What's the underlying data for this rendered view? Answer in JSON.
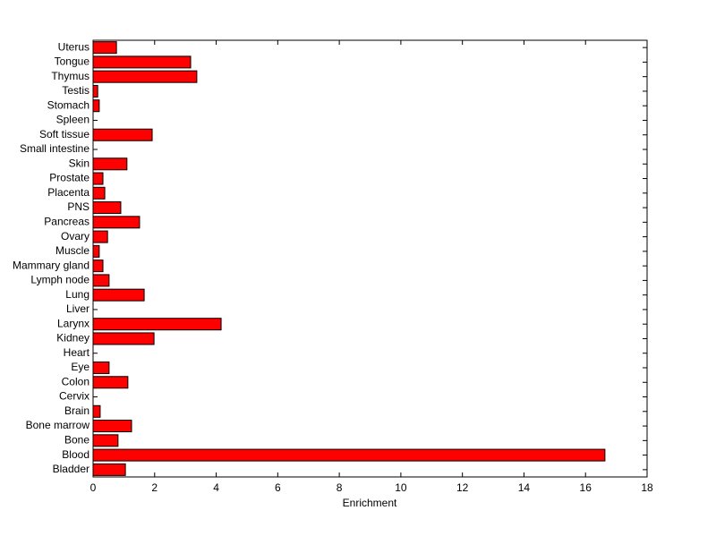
{
  "chart_data": {
    "type": "barh",
    "xlabel": "Enrichment",
    "categories": [
      "Bladder",
      "Blood",
      "Bone",
      "Bone marrow",
      "Brain",
      "Cervix",
      "Colon",
      "Eye",
      "Heart",
      "Kidney",
      "Larynx",
      "Liver",
      "Lung",
      "Lymph node",
      "Mammary gland",
      "Muscle",
      "Ovary",
      "Pancreas",
      "PNS",
      "Placenta",
      "Prostate",
      "Skin",
      "Small intestine",
      "Soft tissue",
      "Spleen",
      "Stomach",
      "Testis",
      "Thymus",
      "Tongue",
      "Uterus"
    ],
    "values": [
      1.05,
      16.63,
      0.81,
      1.25,
      0.23,
      0,
      1.13,
      0.52,
      0,
      1.98,
      4.16,
      0,
      1.66,
      0.52,
      0.32,
      0.2,
      0.47,
      1.51,
      0.9,
      0.38,
      0.32,
      1.1,
      0,
      1.92,
      0,
      0.2,
      0.15,
      3.37,
      3.17,
      0.76
    ],
    "color": "#ff0000",
    "xlim": [
      0,
      18
    ],
    "xticks": [
      0,
      2,
      4,
      6,
      8,
      10,
      12,
      14,
      16,
      18
    ],
    "grid": false
  }
}
